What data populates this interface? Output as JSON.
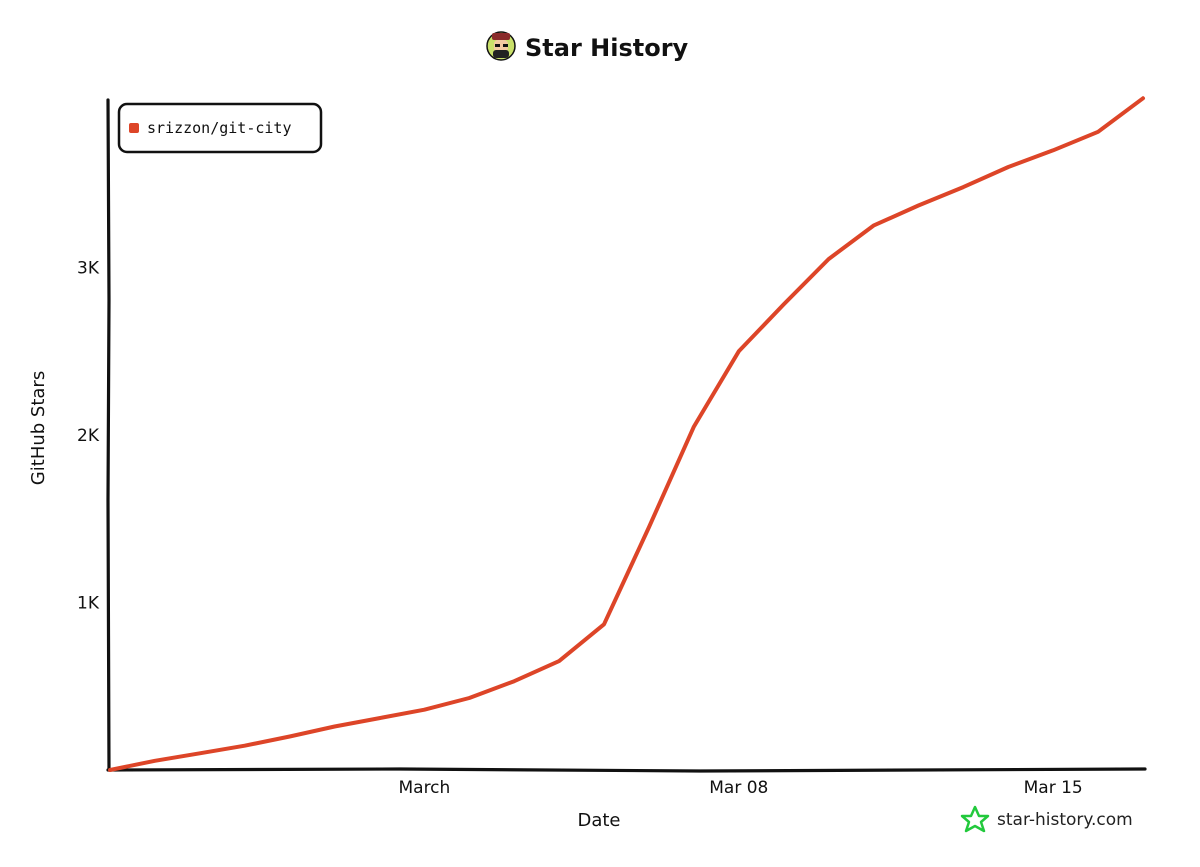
{
  "header": {
    "title": "Star History",
    "logo_icon": "avatar-face-icon"
  },
  "watermark": {
    "text": "star-history.com",
    "icon": "star-outline-icon",
    "icon_color": "#22c93c"
  },
  "colors": {
    "series": "#dd4528",
    "axis": "#111111",
    "logo_bg": "#c9e06a"
  },
  "chart_data": {
    "type": "line",
    "xlabel": "Date",
    "ylabel": "GitHub Stars",
    "x_ticks": [
      "March",
      "Mar 08",
      "Mar 15"
    ],
    "y_ticks": [
      "1K",
      "2K",
      "3K"
    ],
    "ylim": [
      0,
      4000
    ],
    "legend_position": "top-left",
    "grid": false,
    "series": [
      {
        "name": "srizzon/git-city",
        "x": [
          "Feb 22",
          "Feb 23",
          "Feb 24",
          "Feb 25",
          "Feb 26",
          "Feb 27",
          "Feb 28",
          "Mar 01",
          "Mar 02",
          "Mar 03",
          "Mar 04",
          "Mar 05",
          "Mar 06",
          "Mar 07",
          "Mar 08",
          "Mar 09",
          "Mar 10",
          "Mar 11",
          "Mar 12",
          "Mar 13",
          "Mar 14",
          "Mar 15",
          "Mar 16",
          "Mar 17"
        ],
        "values": [
          0,
          55,
          100,
          145,
          200,
          260,
          310,
          360,
          430,
          530,
          650,
          870,
          1450,
          2050,
          2500,
          2780,
          3050,
          3250,
          3370,
          3480,
          3600,
          3700,
          3810,
          4010
        ]
      }
    ]
  }
}
